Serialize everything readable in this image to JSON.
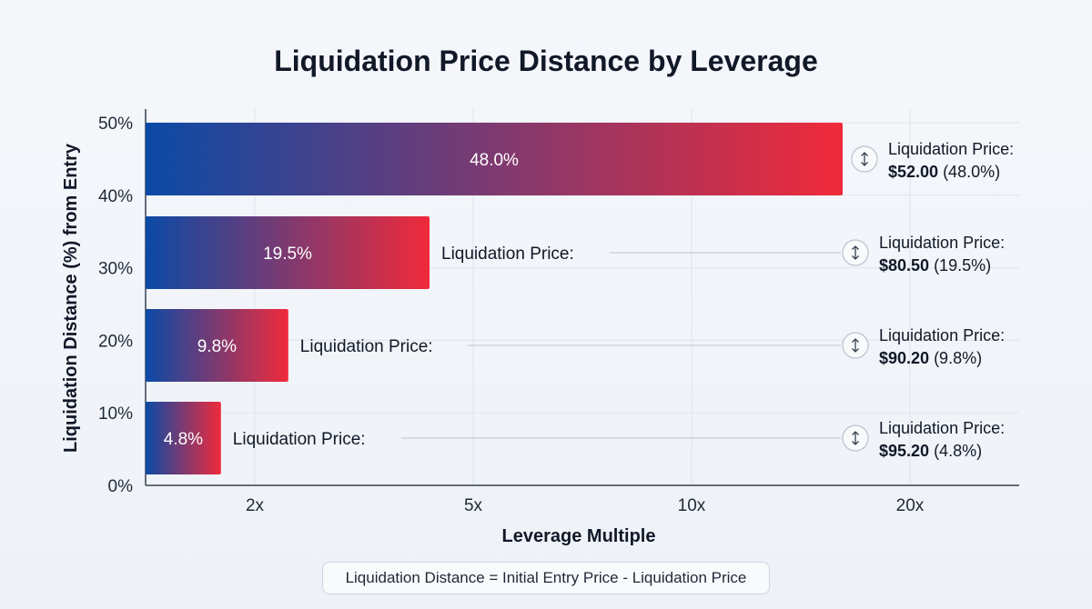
{
  "chart_data": {
    "type": "bar",
    "orientation": "horizontal",
    "title": "Liquidation Price Distance by Leverage",
    "xlabel": "Leverage Multiple",
    "ylabel": "Liquidation Distance (%) from Entry",
    "x_ticks": [
      "2x",
      "5x",
      "10x",
      "20x"
    ],
    "y_ticks": [
      "0%",
      "10%",
      "20%",
      "30%",
      "40%",
      "50%"
    ],
    "ylim": [
      0,
      50
    ],
    "grid": true,
    "bars": [
      {
        "value": 4.8,
        "value_label": "4.8%",
        "inline_label": "Liquidation Price:",
        "callout_label": "Liquidation Price:",
        "price": "$95.20",
        "pct": "(4.8%)"
      },
      {
        "value": 9.8,
        "value_label": "9.8%",
        "inline_label": "Liquidation Price:",
        "callout_label": "Liquidation Price:",
        "price": "$90.20",
        "pct": "(9.8%)"
      },
      {
        "value": 19.5,
        "value_label": "19.5%",
        "inline_label": "Liquidation Price:",
        "callout_label": "Liquidation Price:",
        "price": "$80.50",
        "pct": "(19.5%)"
      },
      {
        "value": 48.0,
        "value_label": "48.0%",
        "inline_label": "",
        "callout_label": "Liquidation Price:",
        "price": "$52.00",
        "pct": "(48.0%)"
      }
    ],
    "gradient_colors": [
      "#0b4aa6",
      "#f02a3a"
    ],
    "footnote": "Liquidation Distance = Initial Entry Price - Liquidation Price"
  }
}
